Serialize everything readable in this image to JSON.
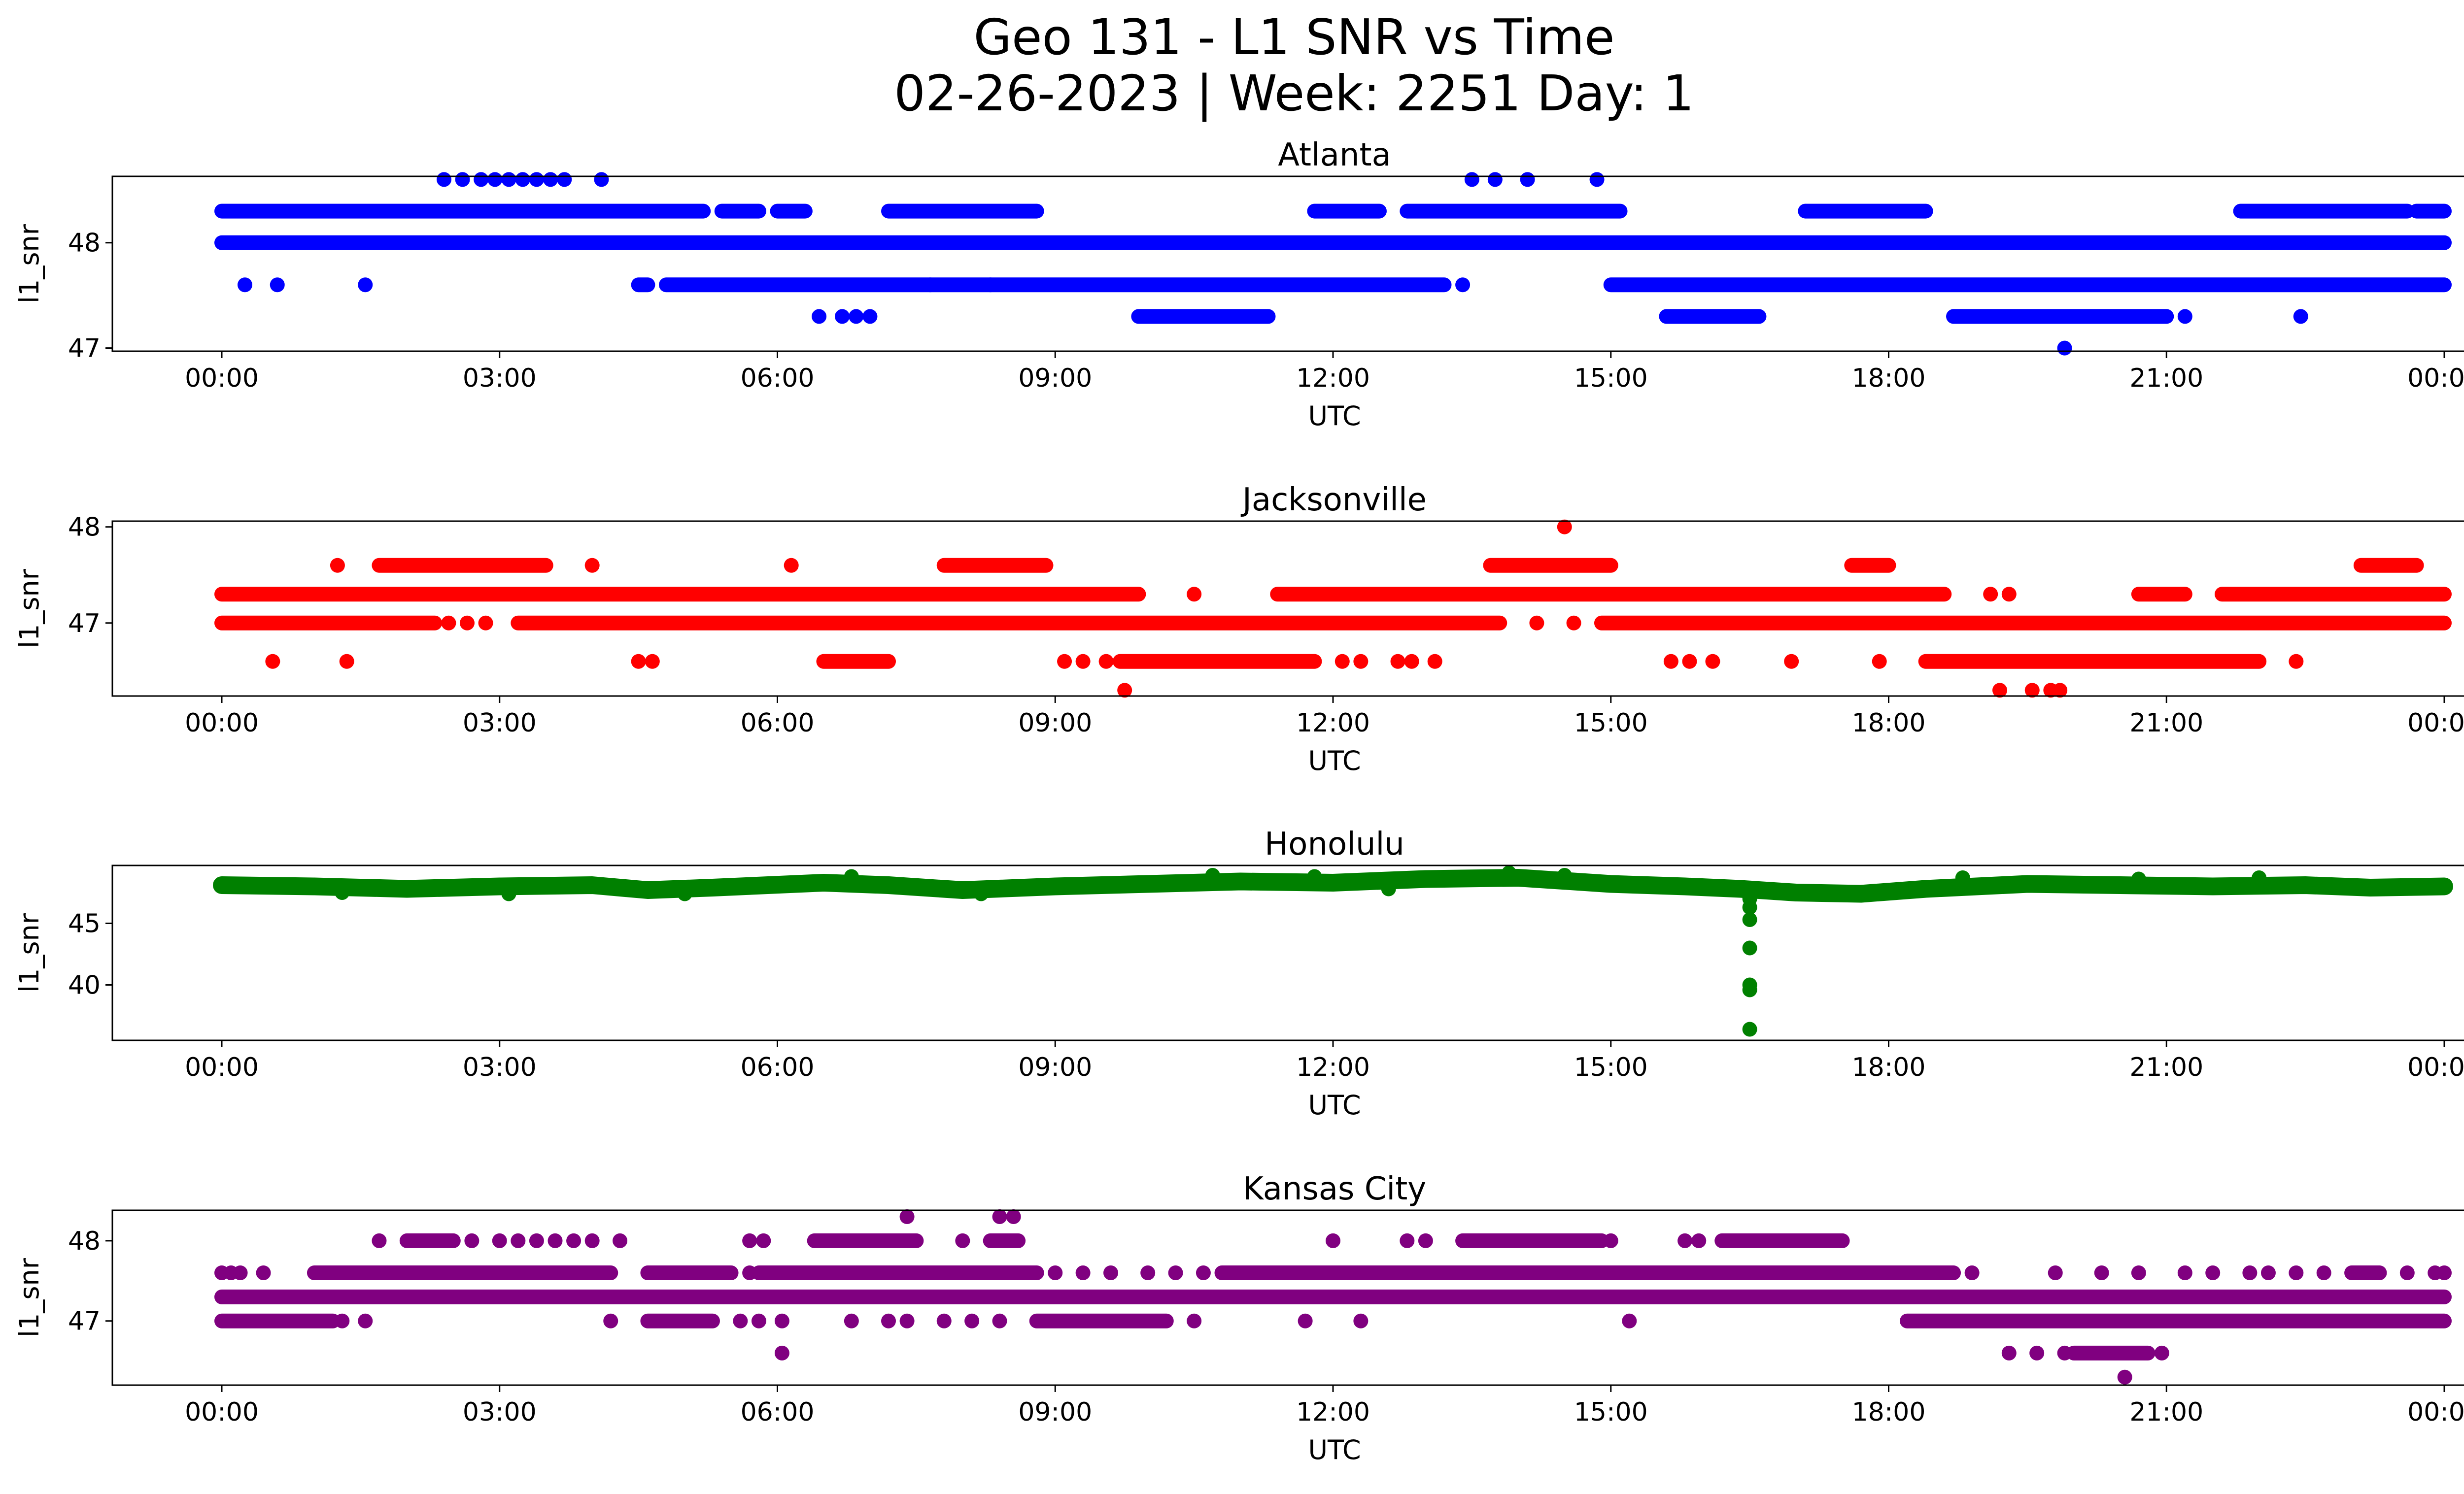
{
  "figure": {
    "title_line1": "Geo 131 - L1 SNR vs Time",
    "title_line2": "02-26-2023 | Week: 2251 Day: 1"
  },
  "chart_data": [
    {
      "type": "scatter",
      "title": "Atlanta",
      "xlabel": "UTC",
      "ylabel": "l1_snr",
      "color": "#0000ff",
      "xlim": [
        "00:00",
        "24:00"
      ],
      "ylim": [
        46.97,
        48.63
      ],
      "yticks": [
        47,
        48
      ],
      "xtick_labels": [
        "00:00",
        "03:00",
        "06:00",
        "09:00",
        "12:00",
        "15:00",
        "18:00",
        "21:00",
        "00:00"
      ],
      "levels": [
        {
          "y": 48.3,
          "segments": [
            [
              0.0,
              5.2
            ],
            [
              5.4,
              5.8
            ],
            [
              6.0,
              6.3
            ],
            [
              7.2,
              8.8
            ],
            [
              11.8,
              12.5
            ],
            [
              12.8,
              15.1
            ],
            [
              17.1,
              18.4
            ],
            [
              21.8,
              23.6
            ],
            [
              23.7,
              24.0
            ]
          ]
        },
        {
          "y": 48.0,
          "segments": [
            [
              0.0,
              24.0
            ]
          ]
        },
        {
          "y": 47.6,
          "segments": [
            [
              4.5,
              4.6
            ],
            [
              4.8,
              13.2
            ],
            [
              15.0,
              24.0
            ]
          ]
        },
        {
          "y": 47.3,
          "segments": [
            [
              9.9,
              11.3
            ],
            [
              15.6,
              16.6
            ],
            [
              18.7,
              21.0
            ]
          ]
        }
      ],
      "points": [
        [
          0.25,
          47.6
        ],
        [
          0.6,
          47.6
        ],
        [
          1.55,
          47.6
        ],
        [
          7.65,
          47.6
        ],
        [
          8.3,
          47.6
        ],
        [
          13.4,
          47.6
        ],
        [
          6.45,
          47.3
        ],
        [
          6.7,
          47.3
        ],
        [
          6.85,
          47.3
        ],
        [
          7.0,
          47.3
        ],
        [
          21.2,
          47.3
        ],
        [
          22.45,
          47.3
        ],
        [
          19.9,
          47.0
        ],
        [
          2.4,
          48.6
        ],
        [
          2.6,
          48.6
        ],
        [
          2.8,
          48.6
        ],
        [
          2.95,
          48.6
        ],
        [
          3.1,
          48.6
        ],
        [
          3.25,
          48.6
        ],
        [
          3.4,
          48.6
        ],
        [
          3.55,
          48.6
        ],
        [
          3.7,
          48.6
        ],
        [
          4.1,
          48.6
        ],
        [
          13.5,
          48.6
        ],
        [
          13.75,
          48.6
        ],
        [
          14.1,
          48.6
        ],
        [
          14.85,
          48.6
        ]
      ]
    },
    {
      "type": "scatter",
      "title": "Jacksonville",
      "xlabel": "UTC",
      "ylabel": "l1_snr",
      "color": "#ff0000",
      "xlim": [
        "00:00",
        "24:00"
      ],
      "ylim": [
        46.24,
        48.06
      ],
      "yticks": [
        47,
        48
      ],
      "xtick_labels": [
        "00:00",
        "03:00",
        "06:00",
        "09:00",
        "12:00",
        "15:00",
        "18:00",
        "21:00",
        "00:00"
      ],
      "levels": [
        {
          "y": 47.6,
          "segments": [
            [
              1.7,
              3.5
            ],
            [
              7.8,
              8.9
            ],
            [
              13.7,
              15.0
            ],
            [
              17.6,
              18.0
            ],
            [
              23.1,
              23.7
            ]
          ]
        },
        {
          "y": 47.3,
          "segments": [
            [
              0.0,
              9.9
            ],
            [
              11.4,
              18.6
            ],
            [
              20.7,
              21.2
            ],
            [
              21.6,
              24.0
            ]
          ]
        },
        {
          "y": 47.0,
          "segments": [
            [
              0.0,
              2.3
            ],
            [
              3.2,
              13.8
            ],
            [
              14.9,
              24.0
            ]
          ]
        },
        {
          "y": 46.6,
          "segments": [
            [
              6.5,
              7.2
            ],
            [
              9.7,
              11.8
            ],
            [
              18.4,
              22.0
            ]
          ]
        }
      ],
      "points": [
        [
          1.25,
          47.6
        ],
        [
          4.0,
          47.6
        ],
        [
          6.15,
          47.6
        ],
        [
          10.5,
          47.3
        ],
        [
          19.1,
          47.3
        ],
        [
          19.3,
          47.3
        ],
        [
          2.45,
          47.0
        ],
        [
          2.65,
          47.0
        ],
        [
          2.85,
          47.0
        ],
        [
          14.2,
          47.0
        ],
        [
          14.6,
          47.0
        ],
        [
          0.55,
          46.6
        ],
        [
          1.35,
          46.6
        ],
        [
          4.5,
          46.6
        ],
        [
          4.65,
          46.6
        ],
        [
          9.1,
          46.6
        ],
        [
          9.3,
          46.6
        ],
        [
          9.55,
          46.6
        ],
        [
          12.1,
          46.6
        ],
        [
          12.3,
          46.6
        ],
        [
          12.7,
          46.6
        ],
        [
          12.85,
          46.6
        ],
        [
          13.1,
          46.6
        ],
        [
          15.65,
          46.6
        ],
        [
          15.85,
          46.6
        ],
        [
          16.1,
          46.6
        ],
        [
          16.95,
          46.6
        ],
        [
          17.9,
          46.6
        ],
        [
          22.4,
          46.6
        ],
        [
          9.75,
          46.3
        ],
        [
          19.2,
          46.3
        ],
        [
          19.55,
          46.3
        ],
        [
          19.75,
          46.3
        ],
        [
          19.85,
          46.3
        ],
        [
          14.5,
          48.0
        ]
      ]
    },
    {
      "type": "scatter",
      "title": "Honolulu",
      "xlabel": "UTC",
      "ylabel": "l1_snr",
      "color": "#008000",
      "xlim": [
        "00:00",
        "24:00"
      ],
      "ylim": [
        35.5,
        49.7
      ],
      "yticks": [
        40,
        45
      ],
      "xtick_labels": [
        "00:00",
        "03:00",
        "06:00",
        "09:00",
        "12:00",
        "15:00",
        "18:00",
        "21:00",
        "00:00"
      ],
      "band": [
        [
          0.0,
          48.1
        ],
        [
          1.0,
          48.0
        ],
        [
          2.0,
          47.8
        ],
        [
          3.0,
          48.0
        ],
        [
          4.0,
          48.1
        ],
        [
          4.6,
          47.7
        ],
        [
          5.3,
          47.9
        ],
        [
          6.5,
          48.3
        ],
        [
          7.2,
          48.1
        ],
        [
          8.0,
          47.7
        ],
        [
          9.0,
          48.0
        ],
        [
          10.0,
          48.2
        ],
        [
          11.0,
          48.4
        ],
        [
          12.0,
          48.3
        ],
        [
          13.0,
          48.6
        ],
        [
          14.0,
          48.7
        ],
        [
          15.0,
          48.2
        ],
        [
          15.8,
          48.0
        ],
        [
          16.4,
          47.8
        ],
        [
          17.0,
          47.5
        ],
        [
          17.7,
          47.4
        ],
        [
          18.4,
          47.8
        ],
        [
          19.5,
          48.2
        ],
        [
          20.5,
          48.1
        ],
        [
          21.5,
          48.0
        ],
        [
          22.5,
          48.1
        ],
        [
          23.2,
          47.9
        ],
        [
          24.0,
          48.0
        ]
      ],
      "points": [
        [
          16.5,
          47.0
        ],
        [
          16.5,
          46.3
        ],
        [
          16.5,
          45.3
        ],
        [
          16.5,
          43.0
        ],
        [
          16.5,
          40.0
        ],
        [
          16.5,
          39.6
        ],
        [
          16.5,
          36.4
        ],
        [
          6.8,
          48.8
        ],
        [
          10.7,
          48.9
        ],
        [
          11.8,
          48.8
        ],
        [
          13.9,
          49.1
        ],
        [
          14.5,
          48.9
        ],
        [
          18.8,
          48.7
        ],
        [
          20.7,
          48.6
        ],
        [
          22.0,
          48.7
        ],
        [
          1.3,
          47.5
        ],
        [
          3.1,
          47.4
        ],
        [
          5.0,
          47.4
        ],
        [
          8.2,
          47.4
        ],
        [
          12.6,
          47.8
        ]
      ]
    },
    {
      "type": "scatter",
      "title": "Kansas City",
      "xlabel": "UTC",
      "ylabel": "l1_snr",
      "color": "#800080",
      "xlim": [
        "00:00",
        "24:00"
      ],
      "ylim": [
        46.2,
        48.38
      ],
      "yticks": [
        47,
        48
      ],
      "xtick_labels": [
        "00:00",
        "03:00",
        "06:00",
        "09:00",
        "12:00",
        "15:00",
        "18:00",
        "21:00",
        "00:00"
      ],
      "levels": [
        {
          "y": 48.0,
          "segments": [
            [
              2.0,
              2.5
            ],
            [
              6.4,
              7.5
            ],
            [
              8.3,
              8.6
            ],
            [
              13.4,
              14.9
            ],
            [
              16.2,
              17.5
            ]
          ]
        },
        {
          "y": 47.6,
          "segments": [
            [
              1.0,
              4.2
            ],
            [
              4.6,
              5.5
            ],
            [
              5.8,
              8.8
            ],
            [
              10.8,
              18.7
            ],
            [
              23.0,
              23.3
            ]
          ]
        },
        {
          "y": 47.3,
          "segments": [
            [
              0.0,
              24.0
            ]
          ]
        },
        {
          "y": 47.0,
          "segments": [
            [
              0.0,
              1.2
            ],
            [
              4.6,
              5.3
            ],
            [
              8.8,
              10.2
            ],
            [
              18.2,
              24.0
            ]
          ]
        },
        {
          "y": 46.6,
          "segments": [
            [
              20.0,
              20.8
            ]
          ]
        }
      ],
      "points": [
        [
          0.0,
          47.6
        ],
        [
          0.1,
          47.6
        ],
        [
          0.2,
          47.6
        ],
        [
          0.45,
          47.6
        ],
        [
          5.7,
          47.6
        ],
        [
          9.0,
          47.6
        ],
        [
          9.3,
          47.6
        ],
        [
          9.6,
          47.6
        ],
        [
          10.0,
          47.6
        ],
        [
          10.3,
          47.6
        ],
        [
          10.6,
          47.6
        ],
        [
          18.9,
          47.6
        ],
        [
          19.8,
          47.6
        ],
        [
          20.3,
          47.6
        ],
        [
          20.7,
          47.6
        ],
        [
          21.2,
          47.6
        ],
        [
          21.5,
          47.6
        ],
        [
          21.9,
          47.6
        ],
        [
          22.1,
          47.6
        ],
        [
          22.4,
          47.6
        ],
        [
          22.7,
          47.6
        ],
        [
          23.6,
          47.6
        ],
        [
          23.9,
          47.6
        ],
        [
          24.0,
          47.6
        ],
        [
          1.3,
          47.0
        ],
        [
          1.55,
          47.0
        ],
        [
          4.2,
          47.0
        ],
        [
          5.6,
          47.0
        ],
        [
          5.8,
          47.0
        ],
        [
          6.05,
          47.0
        ],
        [
          6.8,
          47.0
        ],
        [
          7.2,
          47.0
        ],
        [
          7.4,
          47.0
        ],
        [
          7.8,
          47.0
        ],
        [
          8.1,
          47.0
        ],
        [
          8.4,
          47.0
        ],
        [
          10.5,
          47.0
        ],
        [
          11.7,
          47.0
        ],
        [
          12.3,
          47.0
        ],
        [
          15.2,
          47.0
        ],
        [
          6.05,
          46.6
        ],
        [
          19.3,
          46.6
        ],
        [
          19.6,
          46.6
        ],
        [
          19.9,
          46.6
        ],
        [
          20.95,
          46.6
        ],
        [
          20.55,
          46.3
        ],
        [
          1.7,
          48.0
        ],
        [
          2.7,
          48.0
        ],
        [
          3.0,
          48.0
        ],
        [
          3.2,
          48.0
        ],
        [
          3.4,
          48.0
        ],
        [
          3.6,
          48.0
        ],
        [
          3.8,
          48.0
        ],
        [
          4.0,
          48.0
        ],
        [
          4.3,
          48.0
        ],
        [
          5.7,
          48.0
        ],
        [
          5.85,
          48.0
        ],
        [
          8.0,
          48.0
        ],
        [
          12.0,
          48.0
        ],
        [
          12.8,
          48.0
        ],
        [
          13.0,
          48.0
        ],
        [
          15.0,
          48.0
        ],
        [
          15.8,
          48.0
        ],
        [
          15.95,
          48.0
        ],
        [
          7.4,
          48.3
        ],
        [
          8.4,
          48.3
        ],
        [
          8.55,
          48.3
        ]
      ]
    }
  ]
}
